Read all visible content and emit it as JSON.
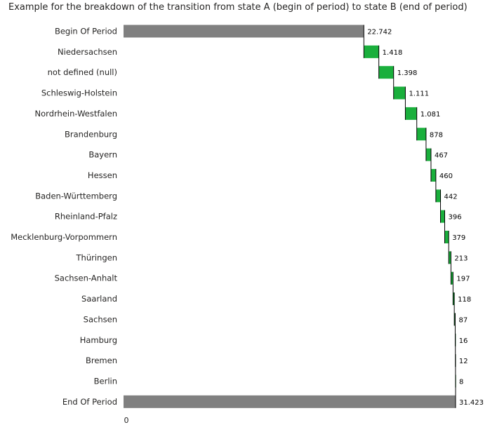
{
  "chart_data": {
    "type": "waterfall",
    "title": "Example for the breakdown of the transition from state A (begin of period) to state B (end of period)",
    "categories": [
      "Begin Of Period",
      "Niedersachsen",
      "not defined (null)",
      "Schleswig-Holstein",
      "Nordrhein-Westfalen",
      "Brandenburg",
      "Bayern",
      "Hessen",
      "Baden-Württemberg",
      "Rheinland-Pfalz",
      "Mecklenburg-Vorpommern",
      "Thüringen",
      "Sachsen-Anhalt",
      "Saarland",
      "Sachsen",
      "Hamburg",
      "Bremen",
      "Berlin",
      "End Of Period"
    ],
    "values": [
      22742,
      1418,
      1398,
      1111,
      1081,
      878,
      467,
      460,
      442,
      396,
      379,
      213,
      197,
      118,
      87,
      16,
      12,
      8,
      31423
    ],
    "value_labels": [
      "22.742",
      "1.418",
      "1.398",
      "1.111",
      "1.081",
      "878",
      "467",
      "460",
      "442",
      "396",
      "379",
      "213",
      "197",
      "118",
      "87",
      "16",
      "12",
      "8",
      "31.423"
    ],
    "kinds": [
      "total",
      "increase",
      "increase",
      "increase",
      "increase",
      "increase",
      "increase",
      "increase",
      "increase",
      "increase",
      "increase",
      "increase",
      "increase",
      "increase",
      "increase",
      "increase",
      "increase",
      "increase",
      "total"
    ],
    "x_ticks": [
      0
    ],
    "x_tick_labels": [
      "0"
    ],
    "xlim": [
      0,
      31423
    ],
    "colors": {
      "total": "#808080",
      "increase": "#1aaf3c",
      "connector": "#000000"
    },
    "grid": false,
    "legend": "none"
  }
}
